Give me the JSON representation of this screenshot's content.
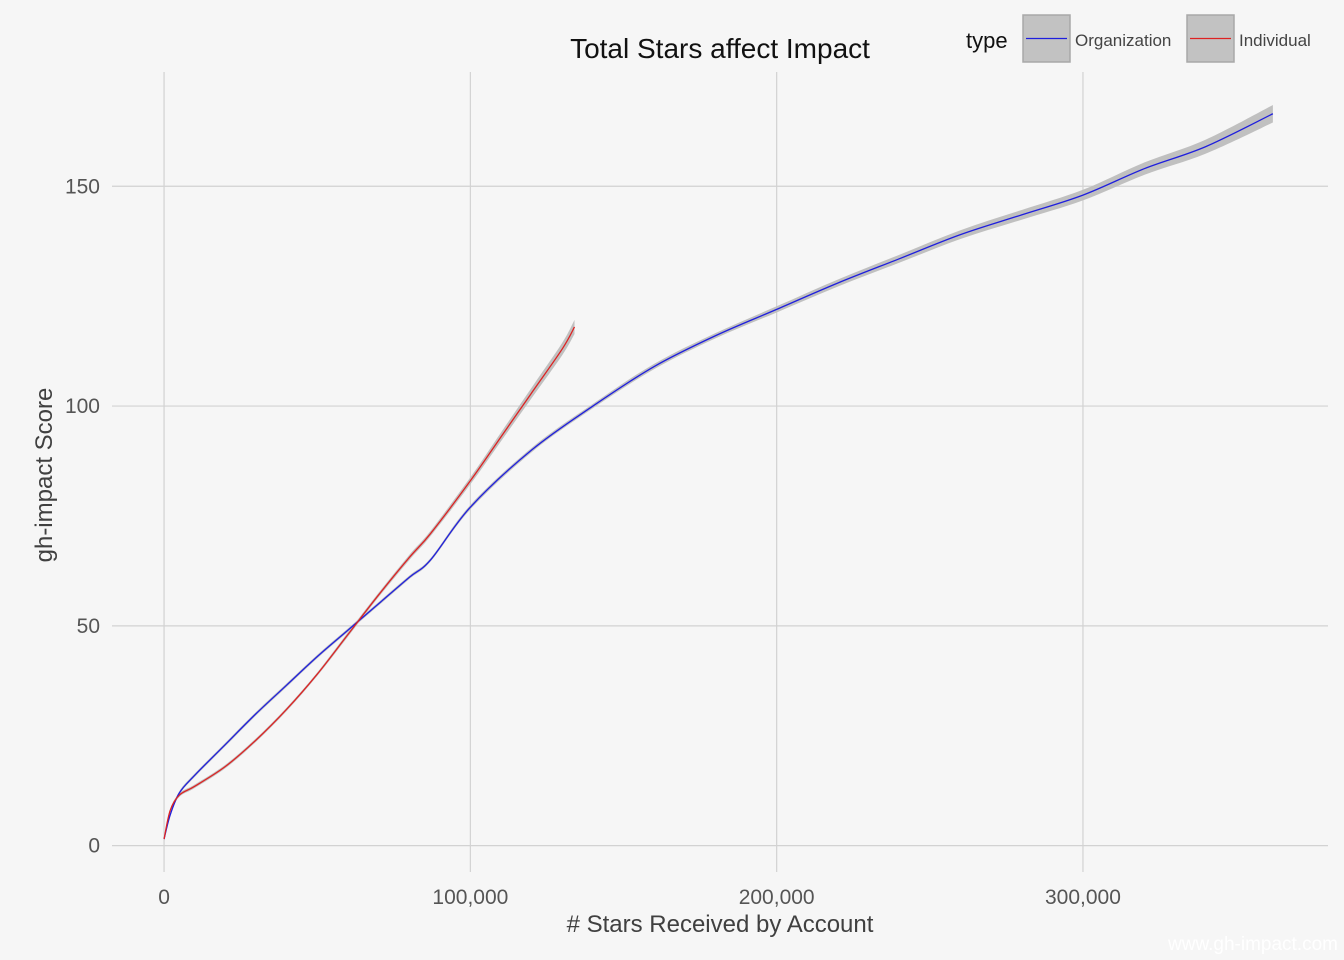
{
  "chart_data": {
    "type": "line",
    "title": "Total Stars affect Impact",
    "xlabel": "# Stars Received by Account",
    "ylabel": "gh-impact Score",
    "xlim": [
      -17000,
      380000
    ],
    "ylim": [
      -6,
      176
    ],
    "x_ticks": [
      0,
      100000,
      200000,
      300000
    ],
    "x_tick_labels": [
      "0",
      "100,000",
      "200,000",
      "300,000"
    ],
    "y_ticks": [
      0,
      50,
      100,
      150
    ],
    "y_tick_labels": [
      "0",
      "50",
      "100",
      "150"
    ],
    "grid": true,
    "legend": {
      "title": "type",
      "position": "top-right",
      "entries": [
        "Organization",
        "Individual"
      ]
    },
    "series": [
      {
        "name": "Organization",
        "color": "#1f1fdd",
        "band_color": "#bdbdbd",
        "x": [
          0,
          2000,
          5000,
          10000,
          20000,
          30000,
          40000,
          50000,
          60000,
          70000,
          80000,
          87000,
          100000,
          120000,
          140000,
          160000,
          180000,
          200000,
          220000,
          240000,
          260000,
          280000,
          300000,
          320000,
          340000,
          362000
        ],
        "y": [
          1.5,
          7,
          12,
          16,
          23,
          30,
          36.5,
          43,
          49,
          55,
          61,
          65,
          77,
          90,
          100,
          109,
          116,
          122,
          128,
          133.5,
          139,
          143.5,
          148,
          154,
          159,
          166.5
        ],
        "band": [
          0.4,
          0.4,
          0.4,
          0.4,
          0.4,
          0.4,
          0.4,
          0.4,
          0.4,
          0.4,
          0.4,
          0.4,
          0.5,
          0.5,
          0.5,
          0.6,
          0.6,
          0.7,
          0.8,
          0.9,
          1.0,
          1.1,
          1.2,
          1.4,
          1.6,
          2.0
        ]
      },
      {
        "name": "Individual",
        "color": "#dd2222",
        "band_color": "#bdbdbd",
        "x": [
          0,
          2000,
          5000,
          10000,
          20000,
          30000,
          40000,
          50000,
          60000,
          70000,
          80000,
          87000,
          100000,
          110000,
          120000,
          130000,
          134000
        ],
        "y": [
          1.5,
          8,
          11.5,
          13.5,
          18,
          24,
          31,
          39,
          48,
          57,
          65.5,
          71,
          83,
          93,
          103,
          113,
          118
        ],
        "band": [
          0.4,
          0.4,
          0.4,
          0.4,
          0.4,
          0.4,
          0.4,
          0.4,
          0.5,
          0.5,
          0.6,
          0.6,
          0.8,
          1.0,
          1.2,
          1.4,
          1.6
        ]
      }
    ],
    "watermark": "www.gh-impact.com"
  }
}
